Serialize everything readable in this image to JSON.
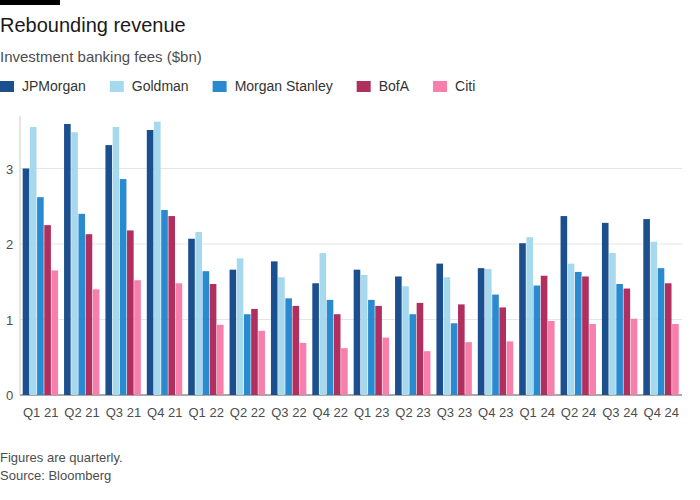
{
  "chart_data": {
    "type": "bar",
    "title": "Rebounding revenue",
    "subtitle": "Investment banking fees ($bn)",
    "note": "Figures are quarterly.",
    "source": "Source: Bloomberg",
    "categories": [
      "Q1 21",
      "Q2 21",
      "Q3 21",
      "Q4 21",
      "Q1 22",
      "Q2 22",
      "Q3 22",
      "Q4 22",
      "Q1 23",
      "Q2 23",
      "Q3 23",
      "Q4 23",
      "Q1 24",
      "Q2 24",
      "Q3 24",
      "Q4 24"
    ],
    "series": [
      {
        "name": "JPMorgan",
        "color": "#1b4f8e",
        "values": [
          3.0,
          3.59,
          3.31,
          3.51,
          2.07,
          1.66,
          1.77,
          1.48,
          1.66,
          1.57,
          1.74,
          1.68,
          2.01,
          2.37,
          2.28,
          2.33
        ]
      },
      {
        "name": "Goldman",
        "color": "#a7d9ee",
        "values": [
          3.55,
          3.48,
          3.55,
          3.62,
          2.16,
          1.81,
          1.56,
          1.88,
          1.59,
          1.44,
          1.56,
          1.67,
          2.09,
          1.74,
          1.88,
          2.03
        ]
      },
      {
        "name": "Morgan Stanley",
        "color": "#2a8ad0",
        "values": [
          2.62,
          2.4,
          2.86,
          2.45,
          1.64,
          1.07,
          1.28,
          1.26,
          1.26,
          1.07,
          0.95,
          1.33,
          1.45,
          1.63,
          1.47,
          1.68
        ]
      },
      {
        "name": "BofA",
        "color": "#b12f5e",
        "values": [
          2.25,
          2.13,
          2.18,
          2.37,
          1.47,
          1.14,
          1.18,
          1.07,
          1.18,
          1.22,
          1.2,
          1.16,
          1.58,
          1.57,
          1.41,
          1.48
        ]
      },
      {
        "name": "Citi",
        "color": "#f67fab",
        "values": [
          1.65,
          1.4,
          1.52,
          1.48,
          0.93,
          0.85,
          0.69,
          0.62,
          0.76,
          0.58,
          0.7,
          0.71,
          0.98,
          0.94,
          1.01,
          0.94
        ]
      }
    ],
    "ylim": [
      0,
      3.7
    ],
    "yticks": [
      0,
      1,
      2,
      3
    ],
    "grid": true,
    "legend": "top-left"
  }
}
